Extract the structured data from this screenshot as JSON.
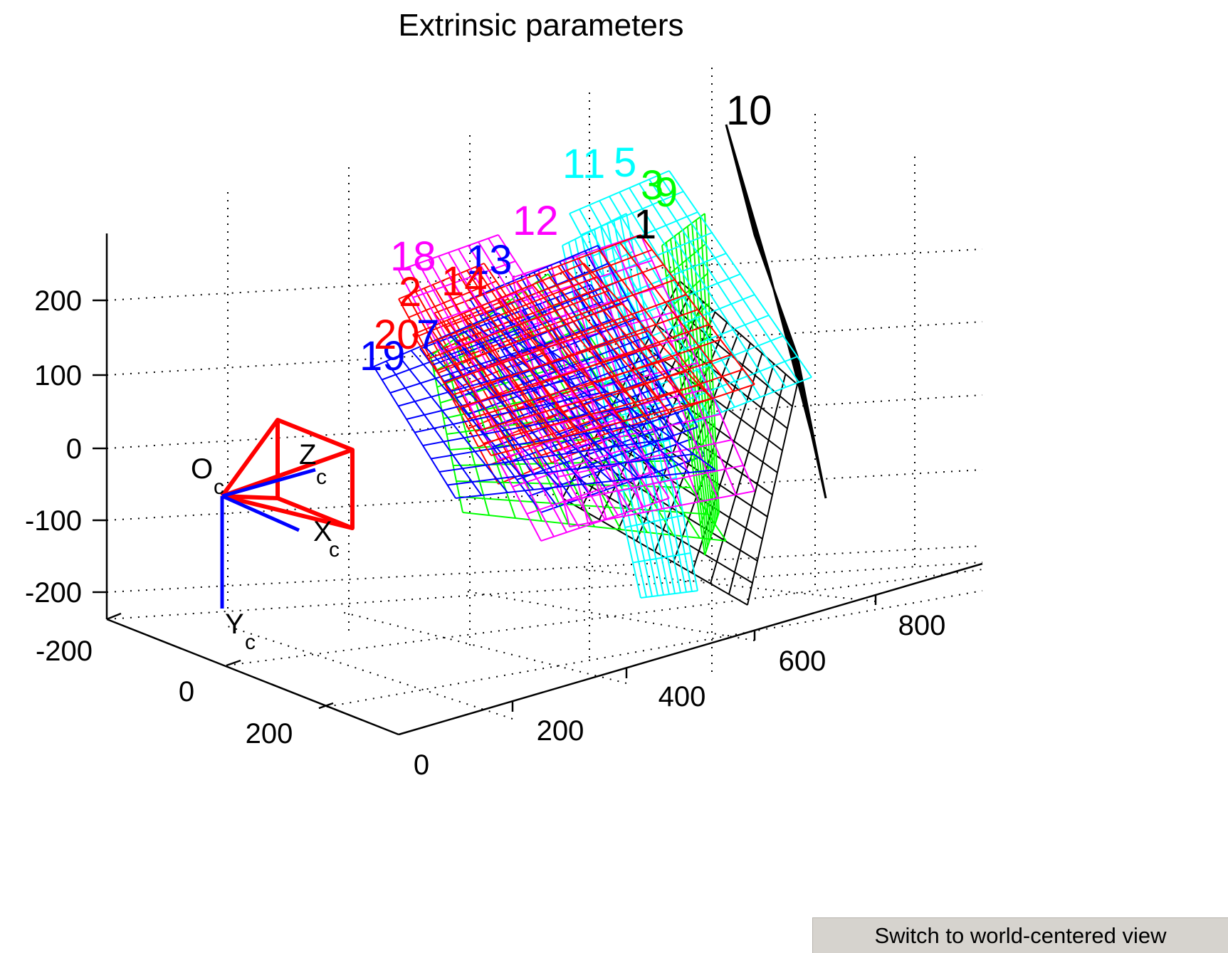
{
  "figure": {
    "switch_button_label": "Switch to world-centered view"
  },
  "chart_data": {
    "type": "3d-wireframe",
    "title": "Extrinsic parameters",
    "x_axis": {
      "ticks": [
        "-200",
        "0",
        "200"
      ]
    },
    "y_axis": {
      "ticks": [
        "0",
        "200",
        "400",
        "600",
        "800"
      ]
    },
    "z_axis": {
      "ticks": [
        "200",
        "100",
        "0",
        "-100",
        "-200"
      ]
    },
    "grid": true,
    "camera": {
      "origin_label": "O",
      "origin_sub": "c",
      "axes": [
        {
          "letter": "X",
          "sub": "c"
        },
        {
          "letter": "Y",
          "sub": "c"
        },
        {
          "letter": "Z",
          "sub": "c"
        }
      ],
      "frustum_color": "#ff0000",
      "axes_color": "#0000ff"
    },
    "planes": [
      {
        "label": "1",
        "color": "#000000"
      },
      {
        "label": "2",
        "color": "#ff0000"
      },
      {
        "label": "3",
        "color": "#00ff00"
      },
      {
        "label": "5",
        "color": "#00ffff"
      },
      {
        "label": "7",
        "color": "#0000ff"
      },
      {
        "label": "9",
        "color": "#00ff00"
      },
      {
        "label": "10",
        "color": "#000000"
      },
      {
        "label": "11",
        "color": "#00ffff"
      },
      {
        "label": "12",
        "color": "#ff00ff"
      },
      {
        "label": "13",
        "color": "#0000ff"
      },
      {
        "label": "14",
        "color": "#ff0000"
      },
      {
        "label": "18",
        "color": "#ff00ff"
      },
      {
        "label": "19",
        "color": "#0000ff"
      },
      {
        "label": "20",
        "color": "#ff0000"
      }
    ]
  }
}
